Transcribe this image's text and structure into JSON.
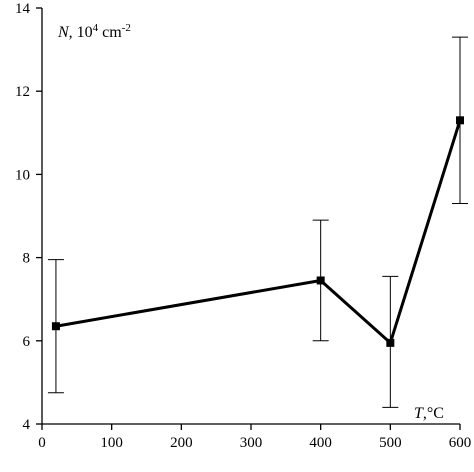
{
  "chart_data": {
    "type": "line",
    "title": "",
    "x": [
      20,
      400,
      500,
      600
    ],
    "series": [
      {
        "values": [
          6.35,
          7.45,
          5.95,
          11.3
        ],
        "error_low": [
          4.75,
          6.0,
          4.4,
          9.3
        ],
        "error_high": [
          7.95,
          8.9,
          7.55,
          13.3
        ]
      }
    ],
    "xlim": [
      0,
      600
    ],
    "ylim": [
      4,
      14
    ],
    "x_ticks": [
      0,
      100,
      200,
      300,
      400,
      500,
      600
    ],
    "y_ticks": [
      4,
      6,
      8,
      10,
      12,
      14
    ],
    "x_tick_labels": [
      "0",
      "100",
      "200",
      "300",
      "400",
      "500",
      "600"
    ],
    "y_tick_labels": [
      "4",
      "6",
      "8",
      "10",
      "12",
      "14"
    ],
    "xlabel": {
      "symbol": "T",
      "unit": ",°C"
    },
    "ylabel": {
      "symbol": "N",
      "unit_prefix": ", 10",
      "unit_exp": "4",
      "unit_suffix": " cm",
      "unit_suffix_exp": "-2"
    },
    "grid": false,
    "legend": "none",
    "colors": {
      "line": "#000000",
      "marker": "#000000",
      "axis": "#000000"
    }
  }
}
